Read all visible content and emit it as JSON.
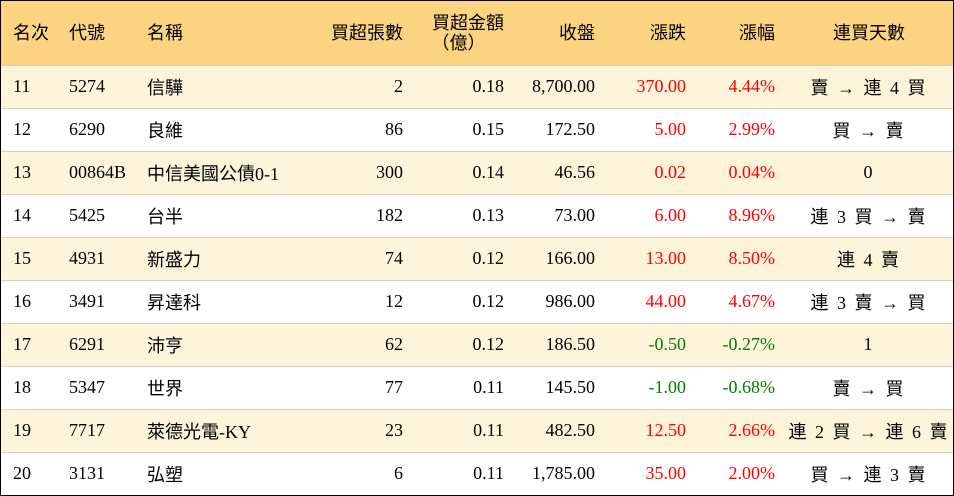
{
  "header": {
    "rank": "名次",
    "code": "代號",
    "name": "名稱",
    "lots": "買超張數",
    "amount_line1": "買超金額",
    "amount_line2": "（億）",
    "close": "收盤",
    "change": "漲跌",
    "pct": "漲幅",
    "streak": "連買天數"
  },
  "colors": {
    "header_bg": "#fcd381",
    "odd_row_bg": "#fdf4da",
    "up": "#ff0000",
    "down": "#008000"
  },
  "rows": [
    {
      "rank": "11",
      "code": "5274",
      "name": "信驊",
      "lots": "2",
      "amount": "0.18",
      "close": "8,700.00",
      "change": "370.00",
      "pct": "4.44%",
      "dir": "up",
      "streak": "賣 → 連 4 買"
    },
    {
      "rank": "12",
      "code": "6290",
      "name": "良維",
      "lots": "86",
      "amount": "0.15",
      "close": "172.50",
      "change": "5.00",
      "pct": "2.99%",
      "dir": "up",
      "streak": "買 → 賣"
    },
    {
      "rank": "13",
      "code": "00864B",
      "name": "中信美國公債0-1",
      "lots": "300",
      "amount": "0.14",
      "close": "46.56",
      "change": "0.02",
      "pct": "0.04%",
      "dir": "up",
      "streak": "0"
    },
    {
      "rank": "14",
      "code": "5425",
      "name": "台半",
      "lots": "182",
      "amount": "0.13",
      "close": "73.00",
      "change": "6.00",
      "pct": "8.96%",
      "dir": "up",
      "streak": "連 3 買 → 賣"
    },
    {
      "rank": "15",
      "code": "4931",
      "name": "新盛力",
      "lots": "74",
      "amount": "0.12",
      "close": "166.00",
      "change": "13.00",
      "pct": "8.50%",
      "dir": "up",
      "streak": "連 4 賣"
    },
    {
      "rank": "16",
      "code": "3491",
      "name": "昇達科",
      "lots": "12",
      "amount": "0.12",
      "close": "986.00",
      "change": "44.00",
      "pct": "4.67%",
      "dir": "up",
      "streak": "連 3 賣 → 買"
    },
    {
      "rank": "17",
      "code": "6291",
      "name": "沛亨",
      "lots": "62",
      "amount": "0.12",
      "close": "186.50",
      "change": "-0.50",
      "pct": "-0.27%",
      "dir": "down",
      "streak": "1"
    },
    {
      "rank": "18",
      "code": "5347",
      "name": "世界",
      "lots": "77",
      "amount": "0.11",
      "close": "145.50",
      "change": "-1.00",
      "pct": "-0.68%",
      "dir": "down",
      "streak": "賣 → 買"
    },
    {
      "rank": "19",
      "code": "7717",
      "name": "萊德光電-KY",
      "lots": "23",
      "amount": "0.11",
      "close": "482.50",
      "change": "12.50",
      "pct": "2.66%",
      "dir": "up",
      "streak": "連 2 買 → 連 6 賣"
    },
    {
      "rank": "20",
      "code": "3131",
      "name": "弘塑",
      "lots": "6",
      "amount": "0.11",
      "close": "1,785.00",
      "change": "35.00",
      "pct": "2.00%",
      "dir": "up",
      "streak": "買 → 連 3 賣"
    }
  ]
}
